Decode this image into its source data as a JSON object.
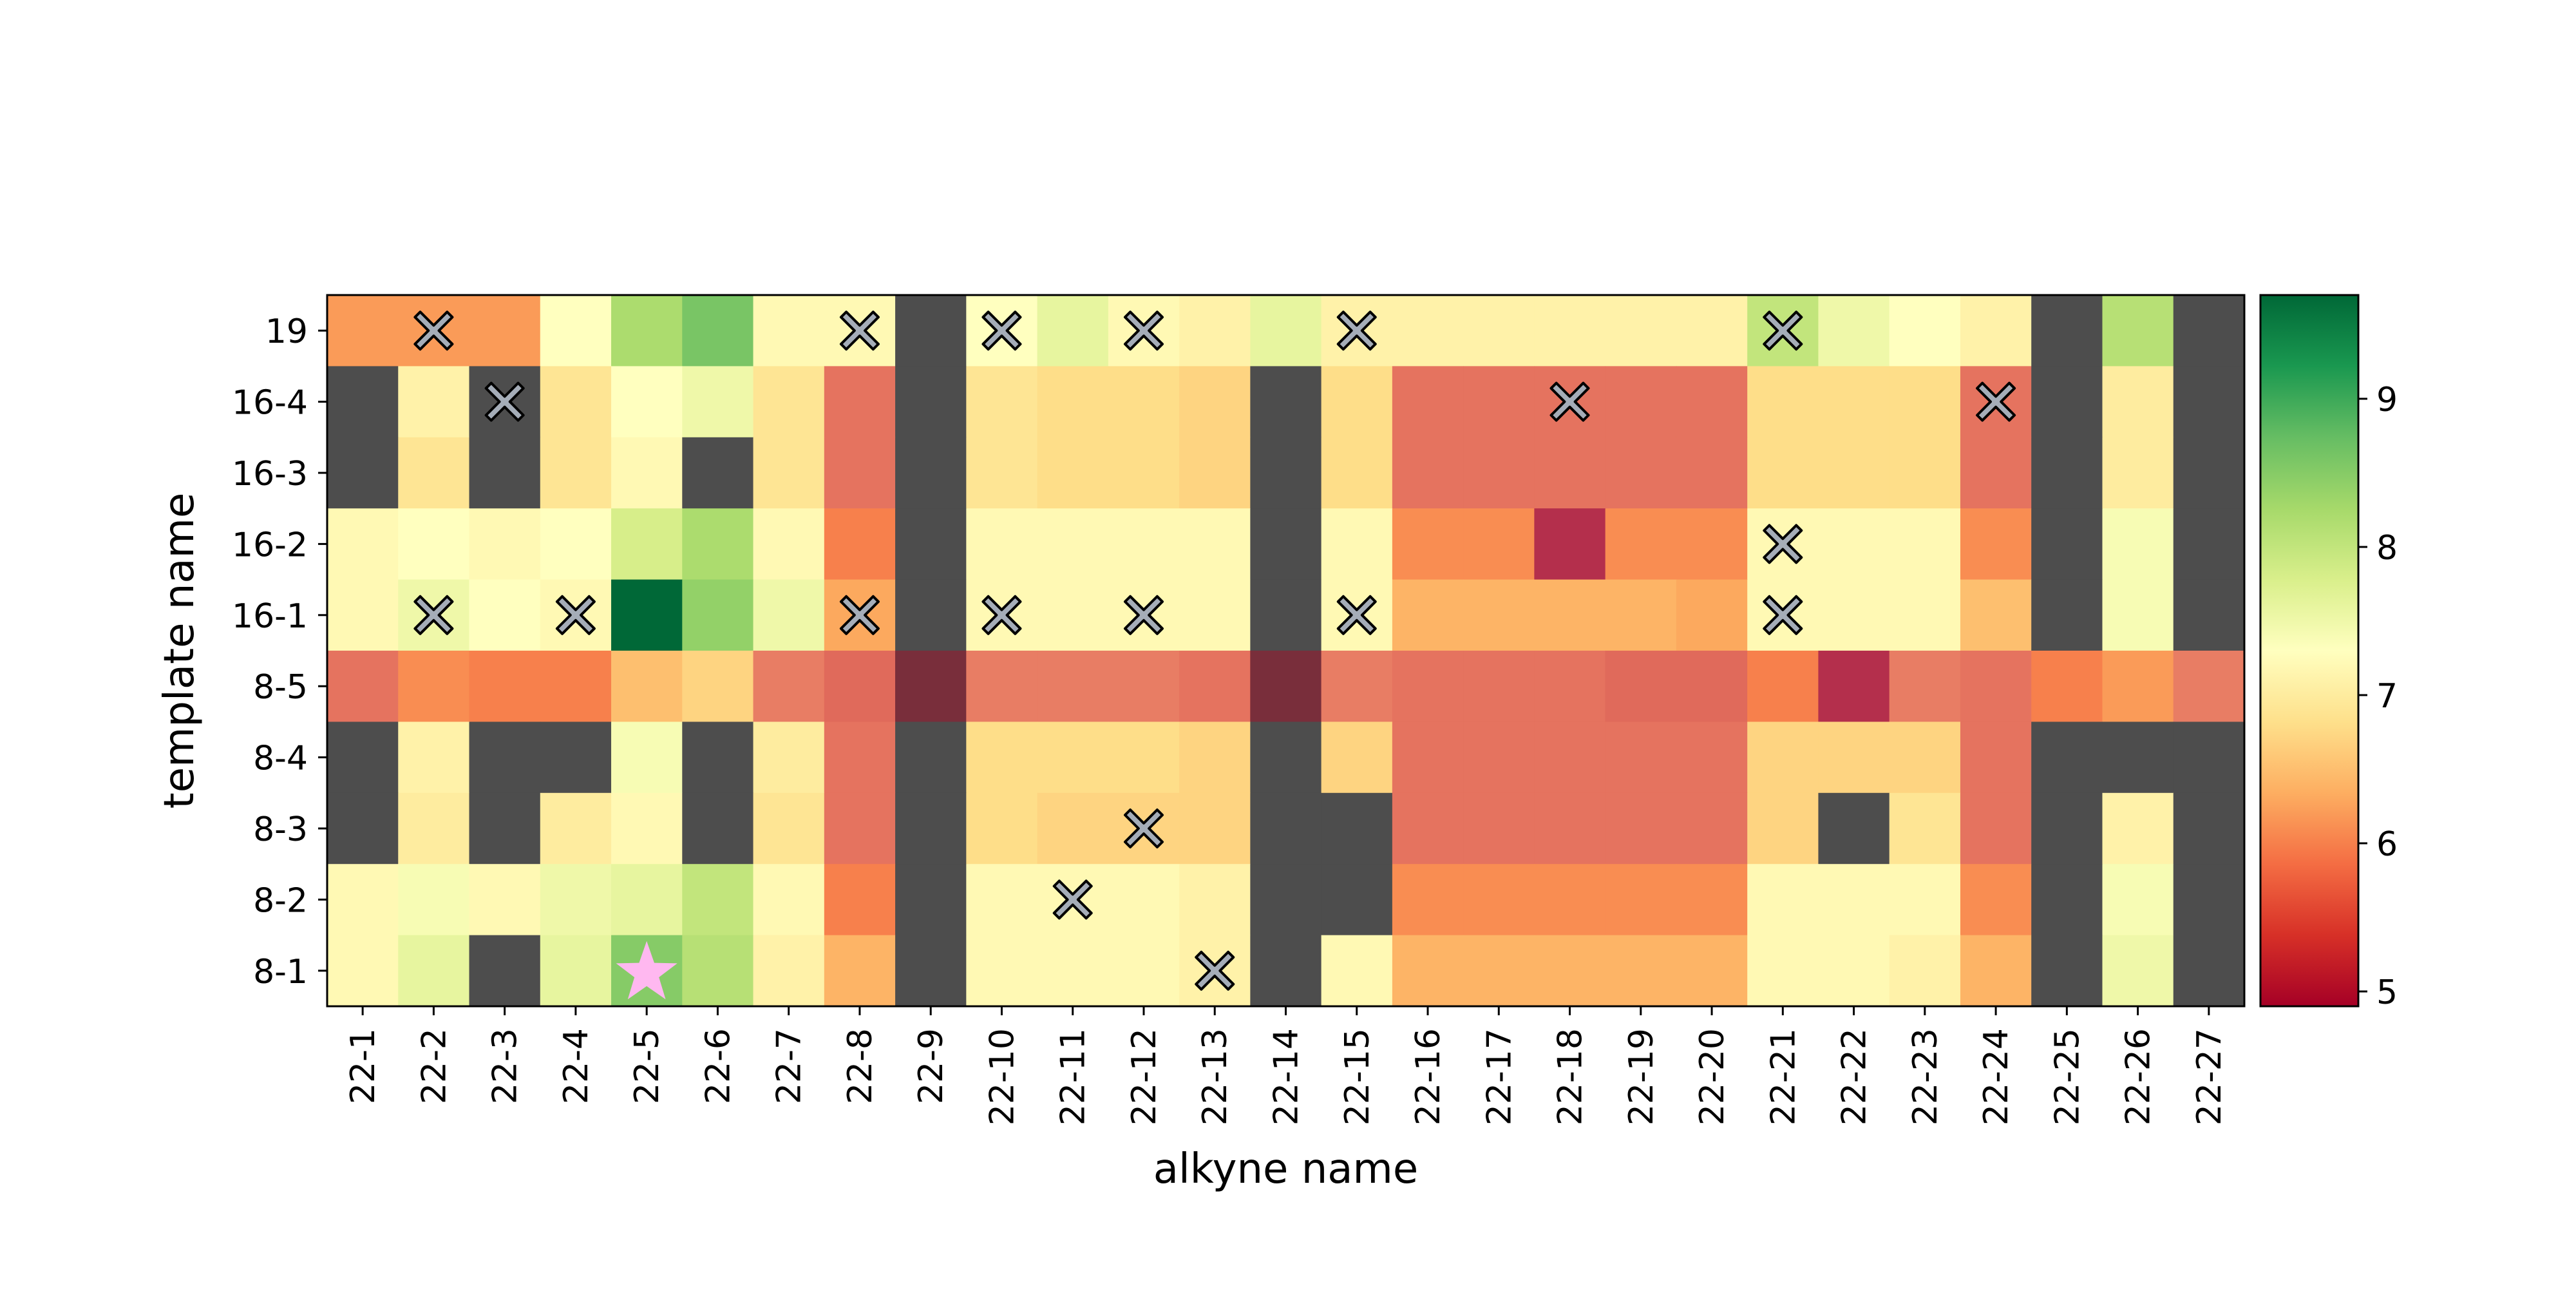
{
  "chart_data": {
    "type": "heatmap",
    "title": "",
    "xlabel": "alkyne name",
    "ylabel": "template name",
    "x_categories": [
      "22-1",
      "22-2",
      "22-3",
      "22-4",
      "22-5",
      "22-6",
      "22-7",
      "22-8",
      "22-9",
      "22-10",
      "22-11",
      "22-12",
      "22-13",
      "22-14",
      "22-15",
      "22-16",
      "22-17",
      "22-18",
      "22-19",
      "22-20",
      "22-21",
      "22-22",
      "22-23",
      "22-24",
      "22-25",
      "22-26",
      "22-27"
    ],
    "y_categories": [
      "19",
      "16-4",
      "16-3",
      "16-2",
      "16-1",
      "8-5",
      "8-4",
      "8-3",
      "8-2",
      "8-1"
    ],
    "values": [
      [
        6.2,
        6.2,
        6.2,
        7.3,
        8.2,
        8.6,
        7.2,
        7.2,
        null,
        7.3,
        7.6,
        7.2,
        7.1,
        7.6,
        7.1,
        7.1,
        7.1,
        7.1,
        7.1,
        7.1,
        8.0,
        7.5,
        7.3,
        7.1,
        null,
        8.1,
        null
      ],
      [
        null,
        7.1,
        null,
        6.9,
        7.3,
        7.5,
        6.9,
        5.8,
        null,
        6.9,
        6.8,
        6.8,
        6.7,
        null,
        6.8,
        5.8,
        5.8,
        5.8,
        5.8,
        5.8,
        6.8,
        6.8,
        6.8,
        5.8,
        null,
        7.0,
        null
      ],
      [
        null,
        6.9,
        null,
        6.9,
        7.2,
        null,
        6.9,
        5.8,
        null,
        6.9,
        6.8,
        6.8,
        6.7,
        null,
        6.8,
        5.8,
        5.8,
        5.8,
        5.8,
        5.8,
        6.8,
        6.8,
        6.8,
        5.8,
        null,
        7.0,
        null
      ],
      [
        7.2,
        7.3,
        7.2,
        7.3,
        7.8,
        8.2,
        7.2,
        6.0,
        null,
        7.2,
        7.2,
        7.2,
        7.2,
        null,
        7.2,
        6.1,
        6.1,
        5.0,
        6.1,
        6.1,
        7.2,
        7.2,
        7.2,
        6.1,
        null,
        7.4,
        null
      ],
      [
        7.2,
        7.5,
        7.3,
        7.2,
        9.7,
        8.4,
        7.5,
        6.3,
        null,
        7.2,
        7.2,
        7.2,
        7.2,
        null,
        7.2,
        6.4,
        6.4,
        6.4,
        6.4,
        6.3,
        7.2,
        7.2,
        7.2,
        6.5,
        null,
        7.4,
        null
      ],
      [
        5.8,
        6.1,
        6.0,
        6.0,
        6.5,
        6.7,
        5.9,
        5.7,
        5.0,
        5.9,
        5.9,
        5.9,
        5.8,
        5.0,
        5.9,
        5.8,
        5.8,
        5.8,
        5.7,
        5.7,
        6.0,
        5.0,
        5.9,
        5.8,
        6.0,
        6.2,
        5.9
      ],
      [
        null,
        7.1,
        null,
        null,
        7.4,
        null,
        7.0,
        5.8,
        null,
        6.8,
        6.8,
        6.8,
        6.7,
        null,
        6.7,
        5.8,
        5.8,
        5.8,
        5.8,
        5.8,
        6.7,
        6.7,
        6.7,
        5.8,
        null,
        null,
        null
      ],
      [
        null,
        7.0,
        null,
        7.0,
        7.2,
        null,
        6.9,
        5.8,
        null,
        6.8,
        6.7,
        6.7,
        6.7,
        null,
        null,
        5.8,
        5.8,
        5.8,
        5.8,
        5.8,
        6.7,
        null,
        6.9,
        5.8,
        null,
        7.1,
        null
      ],
      [
        7.2,
        7.4,
        7.2,
        7.5,
        7.6,
        8.0,
        7.2,
        6.0,
        null,
        7.2,
        7.2,
        7.2,
        7.1,
        null,
        null,
        6.1,
        6.1,
        6.1,
        6.1,
        6.1,
        7.2,
        7.2,
        7.2,
        6.1,
        null,
        7.4,
        null
      ],
      [
        7.2,
        7.6,
        null,
        7.6,
        8.5,
        8.1,
        7.1,
        6.4,
        null,
        7.2,
        7.2,
        7.2,
        7.1,
        null,
        7.2,
        6.4,
        6.4,
        6.4,
        6.4,
        6.4,
        7.2,
        7.2,
        7.1,
        6.4,
        null,
        7.5,
        null
      ]
    ],
    "shaded_cells": [
      [
        0,
        8
      ],
      [
        0,
        24
      ],
      [
        0,
        26
      ],
      [
        1,
        0
      ],
      [
        1,
        2
      ],
      [
        1,
        8
      ],
      [
        1,
        13
      ],
      [
        1,
        24
      ],
      [
        1,
        26
      ],
      [
        2,
        0
      ],
      [
        2,
        2
      ],
      [
        2,
        5
      ],
      [
        2,
        8
      ],
      [
        2,
        13
      ],
      [
        2,
        24
      ],
      [
        2,
        26
      ],
      [
        3,
        8
      ],
      [
        3,
        13
      ],
      [
        3,
        24
      ],
      [
        3,
        26
      ],
      [
        4,
        8
      ],
      [
        4,
        13
      ],
      [
        4,
        24
      ],
      [
        4,
        26
      ],
      [
        5,
        8
      ],
      [
        5,
        13
      ],
      [
        6,
        0
      ],
      [
        6,
        2
      ],
      [
        6,
        3
      ],
      [
        6,
        5
      ],
      [
        6,
        8
      ],
      [
        6,
        13
      ],
      [
        6,
        24
      ],
      [
        6,
        25
      ],
      [
        6,
        26
      ],
      [
        7,
        0
      ],
      [
        7,
        2
      ],
      [
        7,
        5
      ],
      [
        7,
        8
      ],
      [
        7,
        13
      ],
      [
        7,
        14
      ],
      [
        7,
        21
      ],
      [
        7,
        24
      ],
      [
        7,
        26
      ],
      [
        8,
        8
      ],
      [
        8,
        13
      ],
      [
        8,
        14
      ],
      [
        8,
        24
      ],
      [
        8,
        26
      ],
      [
        9,
        2
      ],
      [
        9,
        8
      ],
      [
        9,
        13
      ],
      [
        9,
        24
      ],
      [
        9,
        26
      ]
    ],
    "x_markers": [
      [
        0,
        1
      ],
      [
        0,
        7
      ],
      [
        0,
        9
      ],
      [
        0,
        11
      ],
      [
        0,
        14
      ],
      [
        0,
        20
      ],
      [
        1,
        2
      ],
      [
        1,
        17
      ],
      [
        1,
        23
      ],
      [
        3,
        20
      ],
      [
        4,
        1
      ],
      [
        4,
        3
      ],
      [
        4,
        7
      ],
      [
        4,
        9
      ],
      [
        4,
        11
      ],
      [
        4,
        14
      ],
      [
        4,
        20
      ],
      [
        7,
        11
      ],
      [
        8,
        10
      ],
      [
        9,
        12
      ]
    ],
    "star_markers": [
      [
        9,
        4
      ]
    ],
    "colorbar": {
      "min": 4.9,
      "max": 9.7,
      "ticks": [
        5,
        6,
        7,
        8,
        9
      ],
      "colormap": "RdYlGn"
    },
    "colors": {
      "marker_fill": "#a5adb8",
      "marker_stroke": "#000000",
      "star_fill": "#ffb8f0",
      "shade_overlay": "#4d4d4d"
    },
    "grid": false
  }
}
